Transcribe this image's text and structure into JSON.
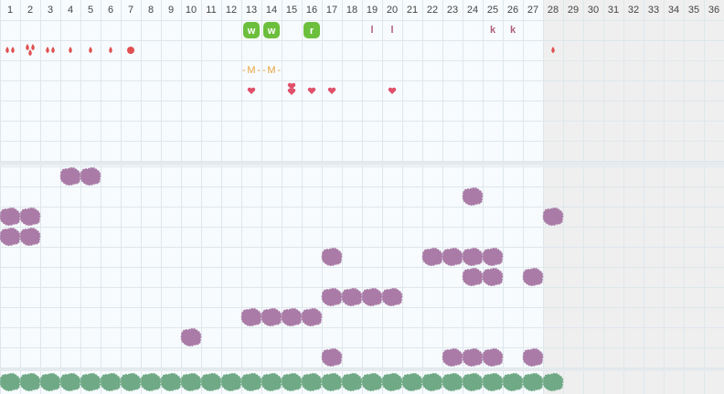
{
  "header": {
    "days": [
      1,
      2,
      3,
      4,
      5,
      6,
      7,
      8,
      9,
      10,
      11,
      12,
      13,
      14,
      15,
      16,
      17,
      18,
      19,
      20,
      21,
      22,
      23,
      24,
      25,
      26,
      27,
      28,
      29,
      30,
      31,
      32,
      33,
      34,
      35,
      36
    ]
  },
  "top_panel": {
    "markers": [
      "w",
      "w",
      "r",
      "l",
      "l",
      "k",
      "k",
      "M",
      "M"
    ]
  }
}
